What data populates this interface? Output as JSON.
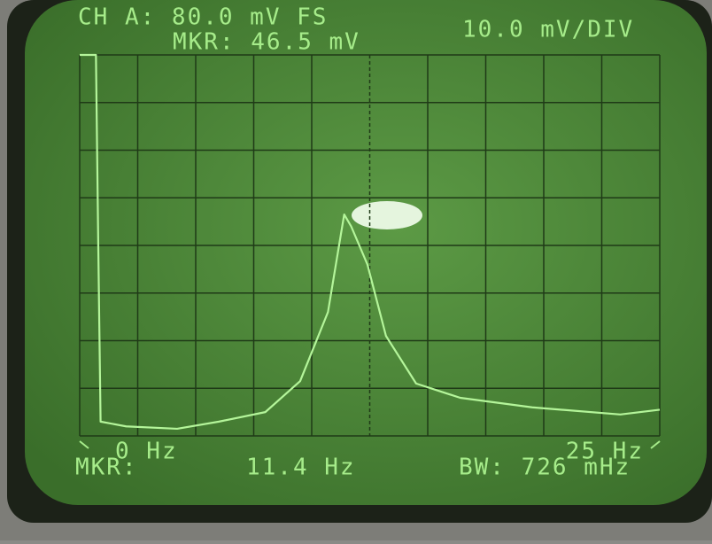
{
  "chart_data": {
    "type": "line",
    "annotations": [
      "CH A: 80.0 mV FS",
      "MKR: 46.5 mV",
      "10.0 mV/DIV",
      "MKR:",
      "11.4 Hz",
      "BW: 726 mHz"
    ],
    "x": [
      0,
      0.7,
      0.8,
      0.9,
      2,
      4.2,
      6,
      8,
      9.5,
      10.7,
      11.4,
      11.7,
      12.4,
      13.2,
      14.5,
      16.4,
      19.5,
      23.3,
      25
    ],
    "series": [
      {
        "color": "#b4f59a",
        "values": [
          80,
          80,
          40,
          3,
          2,
          1.5,
          3,
          5,
          11.5,
          26,
          46.5,
          44,
          36,
          21,
          11,
          8,
          6,
          4.5,
          5.5
        ]
      }
    ],
    "xlim": [
      0,
      25
    ],
    "ylim": [
      0,
      80
    ],
    "xticks": [
      {
        "value": 0,
        "label": "0 Hz"
      },
      {
        "value": 25,
        "label": "25 Hz"
      }
    ]
  }
}
